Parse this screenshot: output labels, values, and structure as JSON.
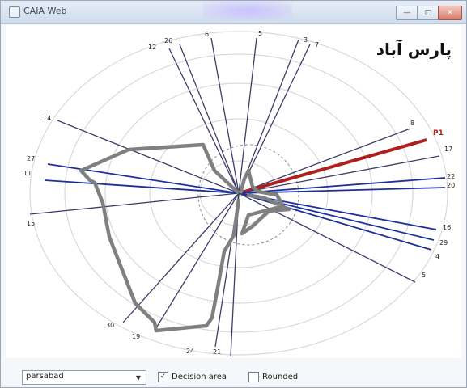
{
  "window": {
    "title": "CAIA Web",
    "buttons": {
      "minimize": "—",
      "maximize": "□",
      "close": "✕"
    }
  },
  "header": {
    "place_name": "پارس آباد"
  },
  "colors": {
    "spoke": "#3d3d6b",
    "spoke_highlight": "#b01f1f",
    "spoke_blue": "#1c2f9c",
    "polygon": "#808080",
    "grid_ring": "#d9d9d9",
    "decision_ring": "#8a8a8a"
  },
  "chart_data": {
    "type": "polar-spokes",
    "spokes": [
      {
        "label": "12",
        "highlight": false
      },
      {
        "label": "26",
        "highlight": false
      },
      {
        "label": "6",
        "highlight": false
      },
      {
        "label": "5",
        "highlight": false
      },
      {
        "label": "3",
        "highlight": false
      },
      {
        "label": "7",
        "highlight": false
      },
      {
        "label": "8",
        "highlight": false
      },
      {
        "label": "P1",
        "highlight": true
      },
      {
        "label": "17",
        "highlight": false
      },
      {
        "label": "22",
        "highlight": false
      },
      {
        "label": "20",
        "highlight": false
      },
      {
        "label": "16",
        "highlight": false
      },
      {
        "label": "29",
        "highlight": false
      },
      {
        "label": "4",
        "highlight": false
      },
      {
        "label": "5",
        "highlight": false
      },
      {
        "label": "21",
        "highlight": false
      },
      {
        "label": "24",
        "highlight": false
      },
      {
        "label": "19",
        "highlight": false
      },
      {
        "label": "30",
        "highlight": false
      },
      {
        "label": "15",
        "highlight": false
      },
      {
        "label": "11",
        "highlight": false
      },
      {
        "label": "27",
        "highlight": false
      },
      {
        "label": "14",
        "highlight": false
      }
    ],
    "rings": 5,
    "decision_ring": true,
    "rounded": false
  },
  "controls": {
    "dropdown_value": "parsabad",
    "dropdown_arrow": "▼",
    "decision_area_label": "Decision area",
    "decision_area_checked": true,
    "rounded_label": "Rounded",
    "rounded_checked": false,
    "check_mark": "✓"
  }
}
